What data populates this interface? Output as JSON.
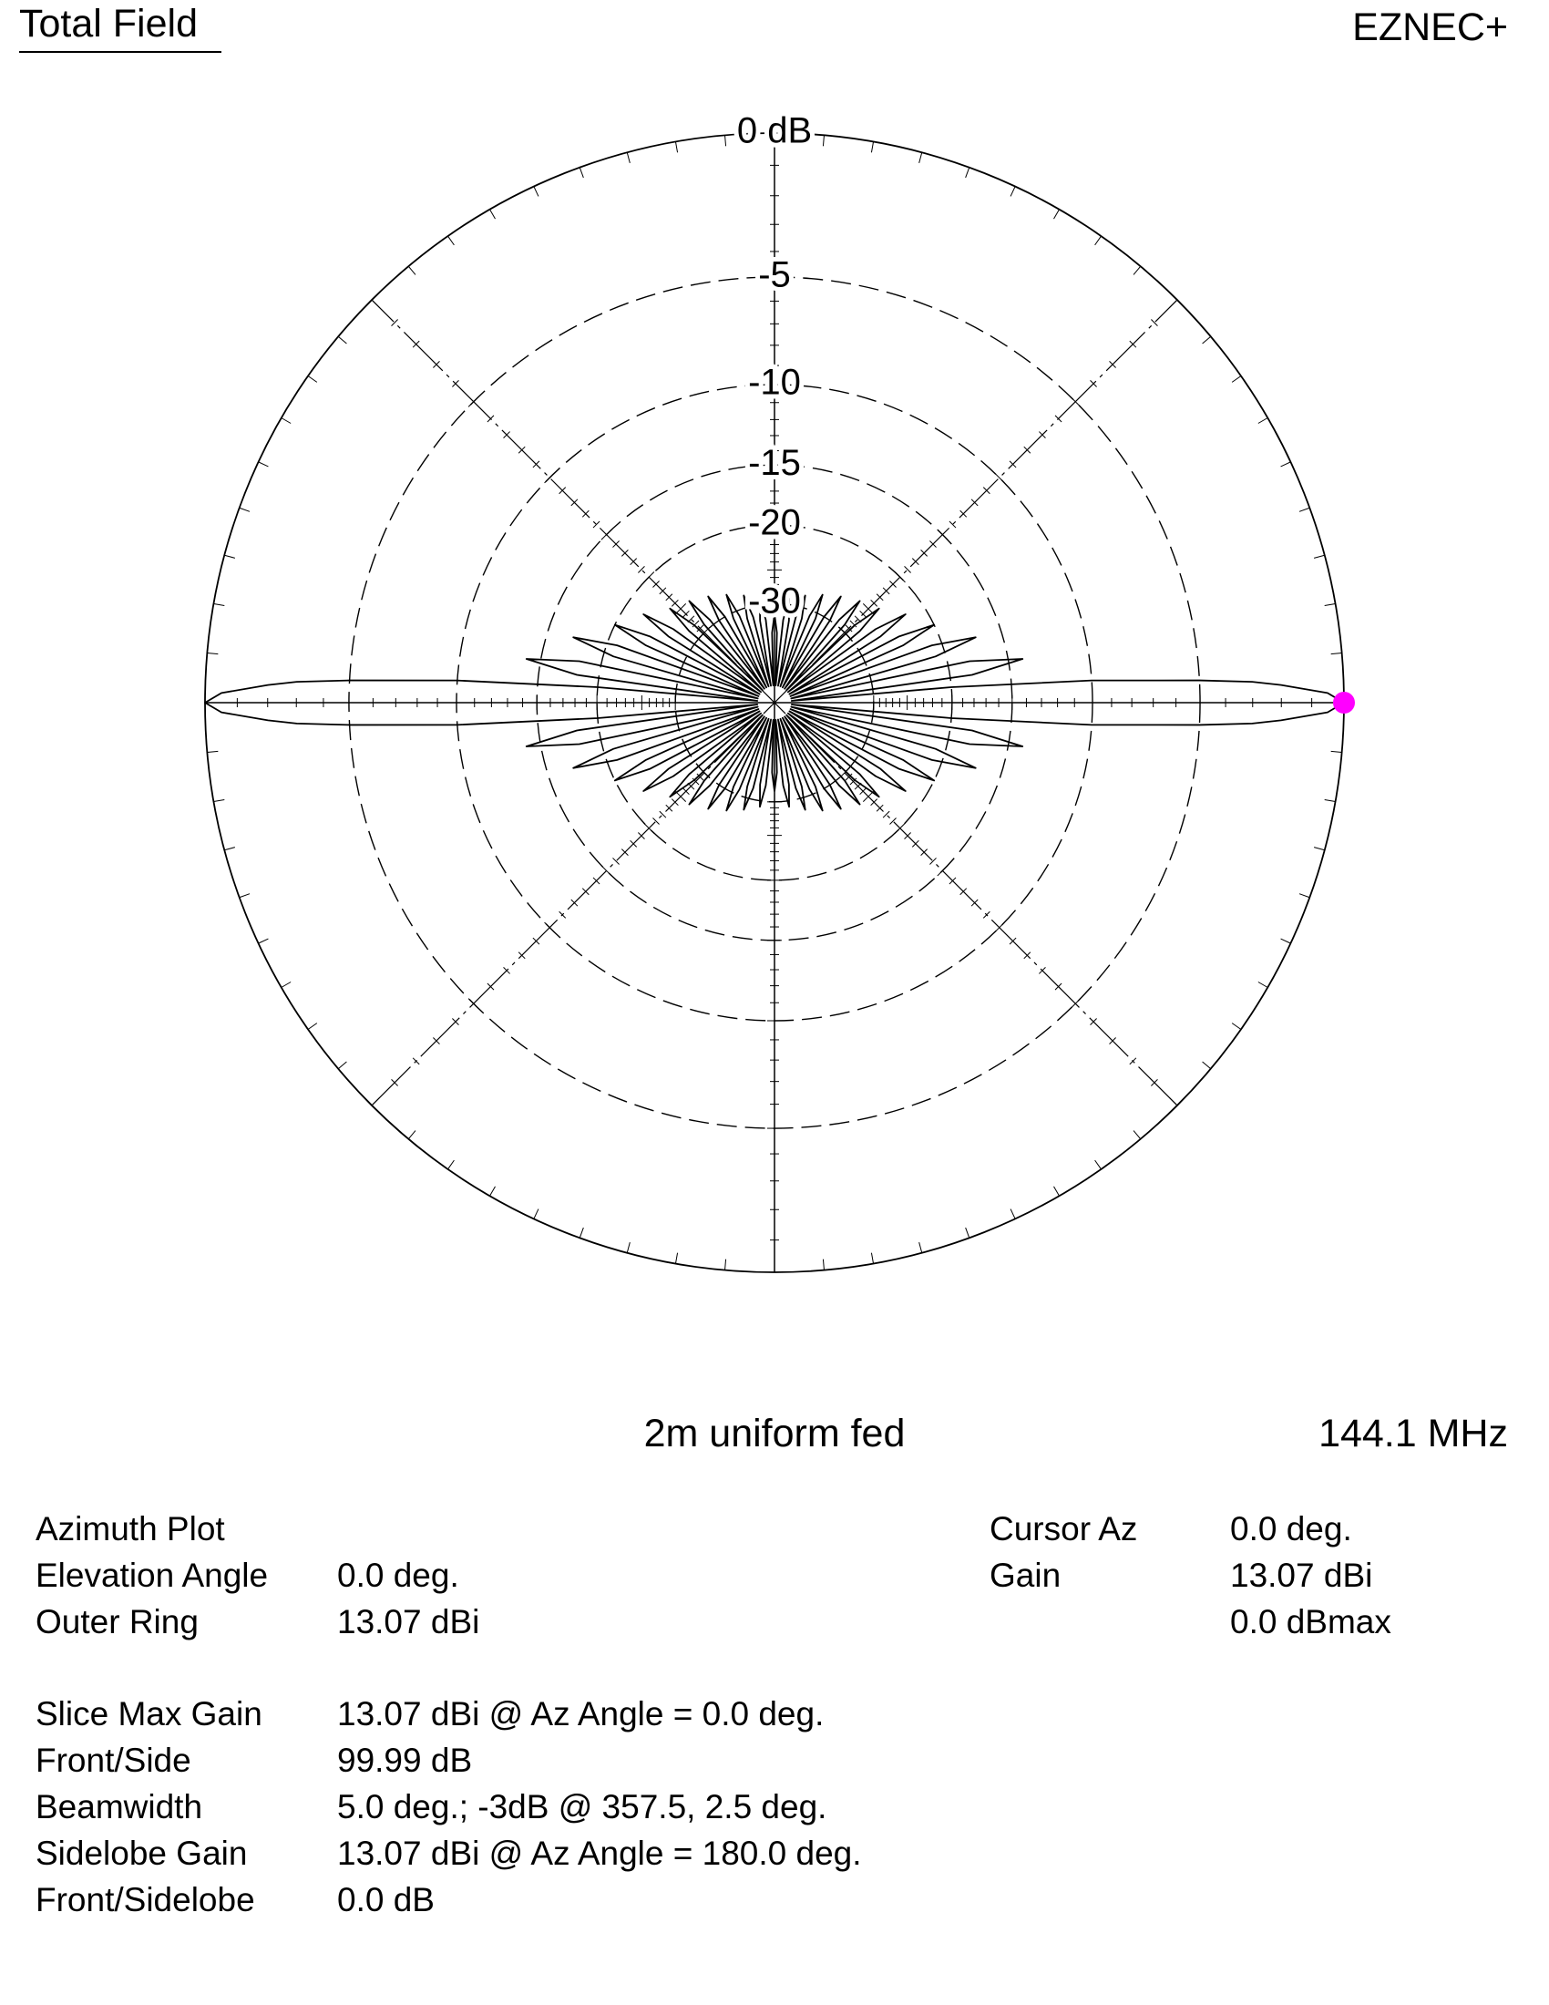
{
  "chart_data": {
    "type": "polar",
    "radial_scale": "arrl-log",
    "title": "Total Field",
    "brand": "EZNEC+",
    "subtitle": "2m uniform fed",
    "frequency": "144.1 MHz",
    "color": "#000000",
    "cursor_color": "#ff00ff",
    "rticks": [
      {
        "value": 0,
        "label": "0 dB"
      },
      -5,
      -10,
      -15,
      -20,
      -30
    ],
    "x": [
      0,
      1,
      2,
      2.5,
      3,
      4,
      5,
      6,
      8,
      10,
      12,
      14,
      16,
      18,
      20,
      22,
      24,
      26,
      28,
      30,
      32,
      34,
      36,
      38,
      40,
      42,
      44,
      46,
      48,
      50,
      52,
      54,
      56,
      58,
      60,
      62,
      64,
      66,
      68,
      70,
      72,
      74,
      76,
      78,
      80,
      82,
      84,
      86,
      88,
      90,
      92,
      94,
      96,
      98,
      100,
      102,
      104,
      106,
      108,
      110,
      112,
      114,
      116,
      118,
      120,
      122,
      124,
      126,
      128,
      130,
      132,
      134,
      136,
      138,
      140,
      142,
      144,
      146,
      148,
      150,
      152,
      154,
      156,
      158,
      160,
      162,
      164,
      166,
      168,
      170,
      172,
      174,
      175,
      176,
      177,
      177.5,
      178,
      179,
      180,
      181,
      182,
      182.5,
      183,
      184,
      185,
      186,
      188,
      190,
      192,
      194,
      196,
      198,
      200,
      202,
      204,
      206,
      208,
      210,
      212,
      214,
      216,
      218,
      220,
      222,
      224,
      226,
      228,
      230,
      232,
      234,
      236,
      238,
      240,
      242,
      244,
      246,
      248,
      250,
      252,
      254,
      256,
      258,
      260,
      262,
      264,
      266,
      268,
      270,
      272,
      274,
      276,
      278,
      280,
      282,
      284,
      286,
      288,
      290,
      292,
      294,
      296,
      298,
      300,
      302,
      304,
      306,
      308,
      310,
      312,
      314,
      316,
      318,
      320,
      322,
      324,
      326,
      328,
      330,
      332,
      334,
      336,
      338,
      340,
      342,
      344,
      346,
      348,
      350,
      352,
      354,
      355,
      356,
      357,
      357.5,
      358,
      359
    ],
    "values": [
      0,
      -0.5,
      -2,
      -3,
      -5,
      -10,
      -20,
      -60,
      -18,
      -14,
      -18,
      -60,
      -21,
      -17,
      -21,
      -60,
      -24,
      -20,
      -24,
      -60,
      -26,
      -22,
      -26,
      -60,
      -28,
      -24,
      -28,
      -60,
      -29,
      -25,
      -29,
      -60,
      -30,
      -26,
      -30,
      -60,
      -31,
      -27,
      -31,
      -60,
      -32,
      -28,
      -32,
      -60,
      -33,
      -29,
      -33,
      -60,
      -36,
      -32,
      -36,
      -60,
      -33,
      -29,
      -33,
      -60,
      -32,
      -28,
      -32,
      -60,
      -31,
      -27,
      -31,
      -60,
      -30,
      -26,
      -30,
      -60,
      -29,
      -25,
      -29,
      -60,
      -28,
      -24,
      -28,
      -60,
      -26,
      -22,
      -26,
      -60,
      -24,
      -20,
      -24,
      -60,
      -21,
      -17,
      -21,
      -60,
      -18,
      -14,
      -18,
      -60,
      -20,
      -10,
      -5,
      -3,
      -2,
      -0.5,
      0,
      -0.5,
      -2,
      -3,
      -5,
      -10,
      -20,
      -60,
      -18,
      -14,
      -18,
      -60,
      -21,
      -17,
      -21,
      -60,
      -24,
      -20,
      -24,
      -60,
      -26,
      -22,
      -26,
      -60,
      -28,
      -24,
      -28,
      -60,
      -29,
      -25,
      -29,
      -60,
      -30,
      -26,
      -30,
      -60,
      -31,
      -27,
      -31,
      -60,
      -32,
      -28,
      -32,
      -60,
      -33,
      -29,
      -33,
      -60,
      -36,
      -32,
      -36,
      -60,
      -33,
      -29,
      -33,
      -60,
      -32,
      -28,
      -32,
      -60,
      -31,
      -27,
      -31,
      -60,
      -30,
      -26,
      -30,
      -60,
      -29,
      -25,
      -29,
      -60,
      -28,
      -24,
      -28,
      -60,
      -26,
      -22,
      -26,
      -60,
      -24,
      -20,
      -24,
      -60,
      -21,
      -17,
      -21,
      -60,
      -18,
      -14,
      -18,
      -60,
      -20,
      -10,
      -5,
      -3,
      -2,
      -0.5
    ],
    "info": [
      [
        {
          "label": "Azimuth Plot"
        },
        {
          "label": "Elevation Angle",
          "value": "0.0 deg."
        },
        {
          "label": "Outer Ring",
          "value": "13.07 dBi"
        }
      ],
      [
        {
          "label": "Slice Max Gain",
          "value": "13.07 dBi @ Az Angle = 0.0 deg."
        },
        {
          "label": "Front/Side",
          "value": "99.99 dB"
        },
        {
          "label": "Beamwidth",
          "value": "5.0 deg.; -3dB @ 357.5, 2.5 deg."
        },
        {
          "label": "Sidelobe Gain",
          "value": "13.07 dBi @ Az Angle = 180.0 deg."
        },
        {
          "label": "Front/Sidelobe",
          "value": "0.0 dB"
        }
      ]
    ],
    "cursor": [
      {
        "label": "Cursor Az",
        "value": "0.0 deg."
      },
      {
        "label": "Gain",
        "value": "13.07 dBi"
      },
      {
        "value": "0.0 dBmax"
      }
    ]
  }
}
